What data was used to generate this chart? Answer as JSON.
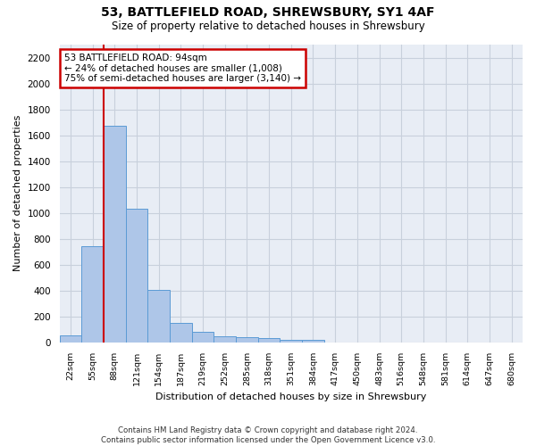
{
  "title_line1": "53, BATTLEFIELD ROAD, SHREWSBURY, SY1 4AF",
  "title_line2": "Size of property relative to detached houses in Shrewsbury",
  "xlabel": "Distribution of detached houses by size in Shrewsbury",
  "ylabel": "Number of detached properties",
  "footnote": "Contains HM Land Registry data © Crown copyright and database right 2024.\nContains public sector information licensed under the Open Government Licence v3.0.",
  "bin_labels": [
    "22sqm",
    "55sqm",
    "88sqm",
    "121sqm",
    "154sqm",
    "187sqm",
    "219sqm",
    "252sqm",
    "285sqm",
    "318sqm",
    "351sqm",
    "384sqm",
    "417sqm",
    "450sqm",
    "483sqm",
    "516sqm",
    "548sqm",
    "581sqm",
    "614sqm",
    "647sqm",
    "680sqm"
  ],
  "bar_values": [
    50,
    740,
    1670,
    1030,
    405,
    150,
    80,
    45,
    40,
    30,
    20,
    20,
    0,
    0,
    0,
    0,
    0,
    0,
    0,
    0,
    0
  ],
  "bar_color": "#aec6e8",
  "bar_edge_color": "#5b9bd5",
  "annotation_text": "53 BATTLEFIELD ROAD: 94sqm\n← 24% of detached houses are smaller (1,008)\n75% of semi-detached houses are larger (3,140) →",
  "annotation_box_color": "#ffffff",
  "annotation_box_edge_color": "#cc0000",
  "vline_color": "#cc0000",
  "ylim": [
    0,
    2300
  ],
  "yticks": [
    0,
    200,
    400,
    600,
    800,
    1000,
    1200,
    1400,
    1600,
    1800,
    2000,
    2200
  ],
  "grid_color": "#c8d0dc",
  "bg_color": "#e8edf5",
  "figsize": [
    6.0,
    5.0
  ],
  "dpi": 100
}
